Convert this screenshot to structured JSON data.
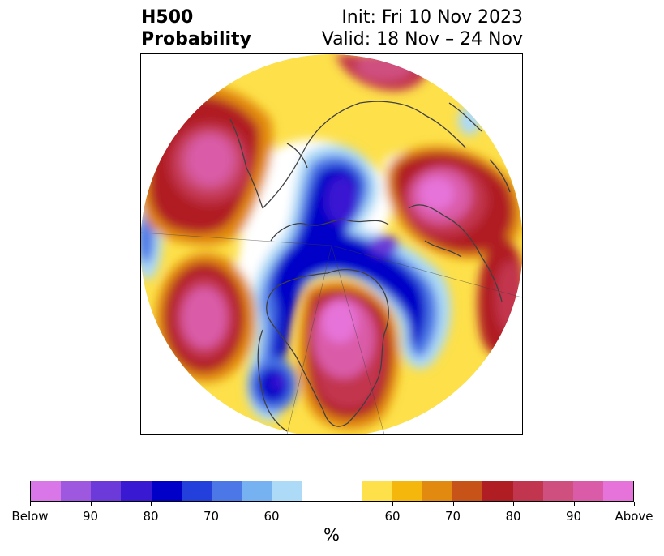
{
  "title": {
    "left_line1": "H500",
    "left_line2": "Probability",
    "right_line1": "Init: Fri 10 Nov 2023",
    "right_line2": "Valid: 18 Nov – 24 Nov"
  },
  "colorbar": {
    "units": "%",
    "colors": [
      "#d977e8",
      "#9e58e0",
      "#6b3ad8",
      "#3a19d2",
      "#0000c8",
      "#2440dc",
      "#4c77e6",
      "#76b1f1",
      "#acdaf7",
      "#ffffff",
      "#ffffff",
      "#fde04a",
      "#f5b70b",
      "#e28a10",
      "#c85318",
      "#b01e23",
      "#c2354e",
      "#cf4f7f",
      "#da5ba8",
      "#e673d9"
    ],
    "labels": [
      "Below",
      "90",
      "80",
      "70",
      "60",
      "60",
      "70",
      "80",
      "90",
      "Above"
    ]
  }
}
